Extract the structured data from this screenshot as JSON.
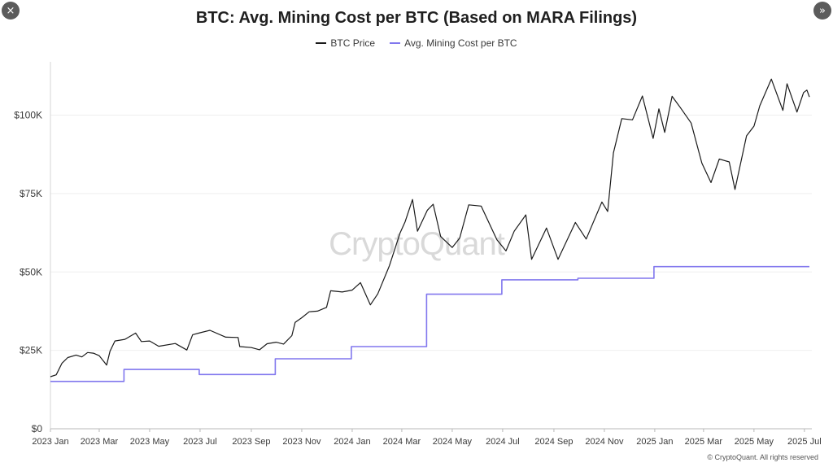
{
  "controls": {
    "close_icon": "×",
    "next_icon": "»"
  },
  "watermark": "CryptoQuant",
  "copyright": "© CryptoQuant. All rights reserved",
  "colors": {
    "btc_price": "#1a1a1a",
    "mining_cost": "#8177ee",
    "grid": "#efefef",
    "axis": "#d4d4d4"
  },
  "chart_data": {
    "type": "line",
    "title": "BTC: Avg. Mining Cost per BTC (Based on MARA Filings)",
    "xlabel": "",
    "ylabel": "",
    "ylim": [
      0,
      117000
    ],
    "xlim": [
      "2023-01-01",
      "2025-07-10"
    ],
    "grid": true,
    "legend_position": "top-center",
    "yticks": [
      0,
      25000,
      50000,
      75000,
      100000
    ],
    "ytick_labels": [
      "$0",
      "$25K",
      "$50K",
      "$75K",
      "$100K"
    ],
    "xticks": [
      "2023-01-01",
      "2023-03-01",
      "2023-05-01",
      "2023-07-01",
      "2023-09-01",
      "2023-11-01",
      "2024-01-01",
      "2024-03-01",
      "2024-05-01",
      "2024-07-01",
      "2024-09-01",
      "2024-11-01",
      "2025-01-01",
      "2025-03-01",
      "2025-05-01",
      "2025-07-01"
    ],
    "xtick_labels": [
      "2023 Jan",
      "2023 Mar",
      "2023 May",
      "2023 Jul",
      "2023 Sep",
      "2023 Nov",
      "2024 Jan",
      "2024 Mar",
      "2024 May",
      "2024 Jul",
      "2024 Sep",
      "2024 Nov",
      "2025 Jan",
      "2025 Mar",
      "2025 May",
      "2025 Jul"
    ],
    "series": [
      {
        "name": "BTC Price",
        "points": [
          [
            "2023-01-01",
            16600
          ],
          [
            "2023-01-08",
            17200
          ],
          [
            "2023-01-15",
            20900
          ],
          [
            "2023-01-22",
            22700
          ],
          [
            "2023-02-01",
            23500
          ],
          [
            "2023-02-08",
            22900
          ],
          [
            "2023-02-15",
            24300
          ],
          [
            "2023-02-22",
            24100
          ],
          [
            "2023-03-01",
            23300
          ],
          [
            "2023-03-10",
            20300
          ],
          [
            "2023-03-14",
            24700
          ],
          [
            "2023-03-20",
            28000
          ],
          [
            "2023-04-01",
            28500
          ],
          [
            "2023-04-14",
            30500
          ],
          [
            "2023-04-21",
            27800
          ],
          [
            "2023-05-01",
            28000
          ],
          [
            "2023-05-12",
            26300
          ],
          [
            "2023-06-01",
            27200
          ],
          [
            "2023-06-15",
            25100
          ],
          [
            "2023-06-22",
            30000
          ],
          [
            "2023-07-01",
            30600
          ],
          [
            "2023-07-13",
            31400
          ],
          [
            "2023-08-01",
            29200
          ],
          [
            "2023-08-16",
            29100
          ],
          [
            "2023-08-18",
            26200
          ],
          [
            "2023-09-01",
            25900
          ],
          [
            "2023-09-11",
            25200
          ],
          [
            "2023-09-20",
            27100
          ],
          [
            "2023-10-01",
            27600
          ],
          [
            "2023-10-10",
            27000
          ],
          [
            "2023-10-20",
            29700
          ],
          [
            "2023-10-24",
            33900
          ],
          [
            "2023-11-01",
            35400
          ],
          [
            "2023-11-10",
            37300
          ],
          [
            "2023-11-20",
            37500
          ],
          [
            "2023-12-01",
            38700
          ],
          [
            "2023-12-06",
            44000
          ],
          [
            "2023-12-20",
            43600
          ],
          [
            "2024-01-01",
            44200
          ],
          [
            "2024-01-11",
            46600
          ],
          [
            "2024-01-23",
            39500
          ],
          [
            "2024-02-01",
            43000
          ],
          [
            "2024-02-15",
            52000
          ],
          [
            "2024-02-28",
            62500
          ],
          [
            "2024-03-05",
            66000
          ],
          [
            "2024-03-14",
            73100
          ],
          [
            "2024-03-20",
            63000
          ],
          [
            "2024-04-01",
            69700
          ],
          [
            "2024-04-08",
            71600
          ],
          [
            "2024-04-17",
            61300
          ],
          [
            "2024-05-01",
            57800
          ],
          [
            "2024-05-10",
            60800
          ],
          [
            "2024-05-21",
            71400
          ],
          [
            "2024-06-05",
            71000
          ],
          [
            "2024-06-24",
            60300
          ],
          [
            "2024-07-05",
            56700
          ],
          [
            "2024-07-15",
            63000
          ],
          [
            "2024-07-29",
            68200
          ],
          [
            "2024-08-05",
            54000
          ],
          [
            "2024-08-23",
            64000
          ],
          [
            "2024-09-06",
            54000
          ],
          [
            "2024-09-27",
            65800
          ],
          [
            "2024-10-10",
            60500
          ],
          [
            "2024-10-29",
            72300
          ],
          [
            "2024-11-05",
            69300
          ],
          [
            "2024-11-12",
            88000
          ],
          [
            "2024-11-22",
            98900
          ],
          [
            "2024-12-05",
            98500
          ],
          [
            "2024-12-17",
            106100
          ],
          [
            "2024-12-30",
            92600
          ],
          [
            "2025-01-06",
            102000
          ],
          [
            "2025-01-13",
            94500
          ],
          [
            "2025-01-22",
            106000
          ],
          [
            "2025-02-01",
            102400
          ],
          [
            "2025-02-14",
            97500
          ],
          [
            "2025-02-27",
            84700
          ],
          [
            "2025-03-10",
            78500
          ],
          [
            "2025-03-20",
            86000
          ],
          [
            "2025-04-01",
            85100
          ],
          [
            "2025-04-08",
            76300
          ],
          [
            "2025-04-22",
            93400
          ],
          [
            "2025-05-01",
            96500
          ],
          [
            "2025-05-08",
            103000
          ],
          [
            "2025-05-22",
            111500
          ],
          [
            "2025-06-05",
            101500
          ],
          [
            "2025-06-10",
            110000
          ],
          [
            "2025-06-22",
            101000
          ],
          [
            "2025-06-30",
            107200
          ],
          [
            "2025-07-04",
            108000
          ],
          [
            "2025-07-07",
            105800
          ]
        ]
      },
      {
        "name": "Avg. Mining Cost per BTC",
        "step": true,
        "points": [
          [
            "2023-01-01",
            15100
          ],
          [
            "2023-03-31",
            15100
          ],
          [
            "2023-03-31",
            18900
          ],
          [
            "2023-06-30",
            18900
          ],
          [
            "2023-06-30",
            17300
          ],
          [
            "2023-09-30",
            17300
          ],
          [
            "2023-09-30",
            22300
          ],
          [
            "2023-12-31",
            22300
          ],
          [
            "2023-12-31",
            26200
          ],
          [
            "2024-03-31",
            26200
          ],
          [
            "2024-03-31",
            42900
          ],
          [
            "2024-06-30",
            42900
          ],
          [
            "2024-06-30",
            47500
          ],
          [
            "2024-09-30",
            47500
          ],
          [
            "2024-09-30",
            48000
          ],
          [
            "2024-12-31",
            48000
          ],
          [
            "2024-12-31",
            51700
          ],
          [
            "2025-07-07",
            51700
          ]
        ]
      }
    ]
  }
}
